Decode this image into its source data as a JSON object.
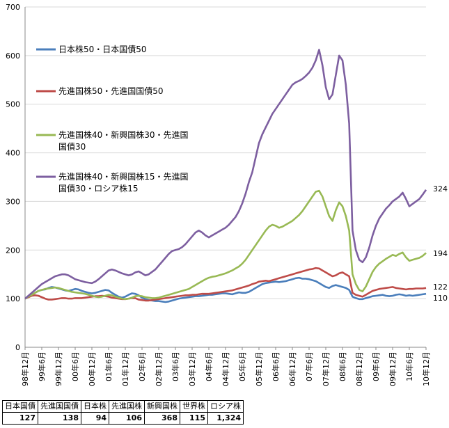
{
  "chart_data": {
    "type": "line",
    "title": "",
    "xlabel": "",
    "ylabel": "",
    "ylim": [
      0,
      700
    ],
    "yticks": [
      0,
      100,
      200,
      300,
      400,
      500,
      600,
      700
    ],
    "xtick_labels": [
      "98年12月",
      "99年6月",
      "99年12月",
      "00年6月",
      "00年12月",
      "01年6月",
      "01年12月",
      "02年6月",
      "02年12月",
      "03年6月",
      "03年12月",
      "04年6月",
      "04年12月",
      "05年6月",
      "05年12月",
      "06年6月",
      "06年12月",
      "07年6月",
      "07年12月",
      "08年6月",
      "08年12月",
      "09年6月",
      "09年12月",
      "10年6月",
      "10年12月"
    ],
    "series": [
      {
        "name": "日本株50・日本国債50",
        "color": "#4a7ebb",
        "end_label": "110",
        "values": [
          100,
          104,
          108,
          112,
          116,
          118,
          119,
          122,
          124,
          123,
          121,
          119,
          117,
          116,
          118,
          120,
          119,
          116,
          114,
          112,
          111,
          112,
          114,
          116,
          118,
          117,
          112,
          108,
          104,
          102,
          104,
          108,
          111,
          110,
          107,
          102,
          99,
          97,
          96,
          95,
          95,
          94,
          93,
          94,
          96,
          98,
          100,
          101,
          102,
          103,
          104,
          105,
          105,
          106,
          107,
          108,
          108,
          109,
          110,
          111,
          111,
          110,
          109,
          111,
          113,
          112,
          112,
          114,
          118,
          122,
          126,
          130,
          132,
          133,
          134,
          135,
          134,
          135,
          136,
          138,
          140,
          142,
          143,
          141,
          141,
          140,
          138,
          136,
          132,
          128,
          124,
          122,
          126,
          128,
          126,
          124,
          122,
          118,
          104,
          101,
          99,
          99,
          101,
          103,
          105,
          106,
          107,
          108,
          106,
          105,
          106,
          108,
          109,
          108,
          106,
          107,
          106,
          107,
          108,
          109,
          110
        ]
      },
      {
        "name": "先進国株50・先進国国債50",
        "color": "#be4b48",
        "end_label": "122",
        "values": [
          100,
          103,
          106,
          107,
          106,
          103,
          100,
          98,
          98,
          99,
          100,
          101,
          101,
          100,
          100,
          101,
          101,
          101,
          102,
          103,
          104,
          105,
          105,
          106,
          105,
          104,
          102,
          101,
          100,
          99,
          99,
          100,
          101,
          101,
          98,
          97,
          96,
          96,
          97,
          98,
          99,
          100,
          101,
          102,
          103,
          104,
          105,
          106,
          107,
          107,
          108,
          108,
          109,
          110,
          110,
          110,
          111,
          112,
          113,
          114,
          115,
          116,
          117,
          119,
          121,
          123,
          125,
          127,
          130,
          132,
          135,
          136,
          137,
          136,
          138,
          140,
          142,
          144,
          146,
          148,
          150,
          152,
          154,
          156,
          158,
          160,
          161,
          163,
          162,
          158,
          154,
          150,
          146,
          148,
          152,
          154,
          150,
          146,
          112,
          108,
          106,
          104,
          108,
          112,
          116,
          118,
          120,
          121,
          122,
          123,
          124,
          122,
          121,
          120,
          119,
          120,
          120,
          121,
          121,
          121,
          122
        ]
      },
      {
        "name": "先進国株40・新興国株30・先進国国債30",
        "color": "#98b954",
        "end_label": "194",
        "values": [
          100,
          104,
          108,
          112,
          116,
          118,
          120,
          121,
          122,
          123,
          122,
          120,
          118,
          116,
          114,
          113,
          112,
          111,
          110,
          108,
          106,
          104,
          103,
          104,
          106,
          108,
          107,
          104,
          102,
          100,
          99,
          100,
          102,
          105,
          106,
          105,
          103,
          102,
          101,
          101,
          102,
          104,
          106,
          108,
          110,
          112,
          114,
          116,
          118,
          120,
          124,
          128,
          132,
          136,
          140,
          143,
          145,
          146,
          148,
          150,
          152,
          155,
          158,
          162,
          166,
          172,
          180,
          190,
          200,
          210,
          220,
          230,
          240,
          248,
          252,
          250,
          246,
          248,
          252,
          256,
          260,
          266,
          272,
          280,
          290,
          300,
          310,
          320,
          322,
          310,
          290,
          270,
          260,
          282,
          298,
          290,
          270,
          240,
          150,
          130,
          118,
          115,
          125,
          140,
          155,
          165,
          172,
          177,
          182,
          186,
          190,
          188,
          192,
          195,
          185,
          178,
          180,
          182,
          184,
          188,
          194
        ]
      },
      {
        "name": "先進国株40・新興国株15・先進国国債30・ロシア株15",
        "color": "#7d5fa0",
        "end_label": "324",
        "values": [
          100,
          106,
          112,
          118,
          124,
          130,
          134,
          138,
          142,
          146,
          148,
          150,
          150,
          148,
          144,
          140,
          138,
          136,
          134,
          133,
          132,
          135,
          140,
          146,
          152,
          158,
          160,
          158,
          155,
          152,
          150,
          148,
          150,
          154,
          156,
          152,
          148,
          150,
          155,
          160,
          168,
          176,
          184,
          192,
          198,
          200,
          202,
          206,
          212,
          220,
          228,
          236,
          240,
          236,
          230,
          226,
          230,
          234,
          238,
          242,
          246,
          252,
          260,
          268,
          280,
          296,
          316,
          340,
          360,
          390,
          420,
          438,
          452,
          466,
          480,
          490,
          500,
          510,
          520,
          530,
          540,
          545,
          548,
          552,
          558,
          565,
          575,
          590,
          612,
          580,
          535,
          510,
          520,
          560,
          600,
          590,
          540,
          460,
          240,
          200,
          180,
          175,
          185,
          205,
          230,
          250,
          265,
          275,
          285,
          292,
          300,
          305,
          310,
          318,
          305,
          290,
          295,
          300,
          305,
          314,
          324
        ]
      }
    ],
    "summary_table": {
      "headers": [
        "日本国債",
        "先進国国債",
        "日本株",
        "先進国株",
        "新興国株",
        "世界株",
        "ロシア株"
      ],
      "values": [
        "127",
        "138",
        "94",
        "106",
        "368",
        "115",
        "1,324"
      ]
    }
  }
}
